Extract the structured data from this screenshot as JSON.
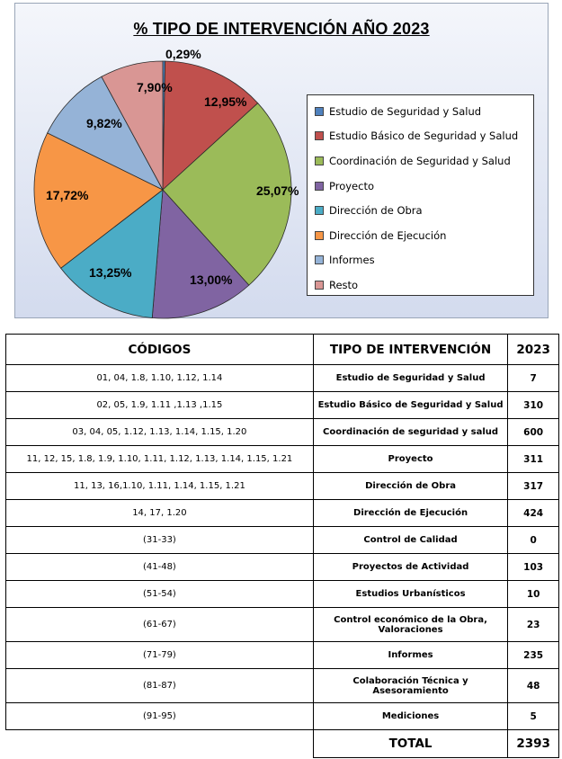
{
  "chart_data": {
    "type": "pie",
    "title": "% TIPO DE INTERVENCIÓN AÑO 2023",
    "slices": [
      {
        "name": "Estudio de Seguridad y Salud",
        "value": 0.29,
        "label": "0,29%",
        "color": "#4f81bd"
      },
      {
        "name": "Estudio Básico de Seguridad y Salud",
        "value": 12.95,
        "label": "12,95%",
        "color": "#c0504d"
      },
      {
        "name": "Coordinación de Seguridad y Salud",
        "value": 25.07,
        "label": "25,07%",
        "color": "#9bbb59"
      },
      {
        "name": "Proyecto",
        "value": 13.0,
        "label": "13,00%",
        "color": "#8064a2"
      },
      {
        "name": "Dirección de Obra",
        "value": 13.25,
        "label": "13,25%",
        "color": "#4bacc6"
      },
      {
        "name": "Dirección de Ejecución",
        "value": 17.72,
        "label": "17,72%",
        "color": "#f79646"
      },
      {
        "name": "Informes",
        "value": 9.82,
        "label": "9,82%",
        "color": "#95b3d7"
      },
      {
        "name": "Resto",
        "value": 7.9,
        "label": "7,90%",
        "color": "#d99694"
      }
    ],
    "legend_position": "right"
  },
  "table": {
    "headers": {
      "codes": "CÓDIGOS",
      "type": "TIPO DE INTERVENCIÓN",
      "year": "2023"
    },
    "rows": [
      {
        "codes": "01, 04, 1.8, 1.10, 1.12, 1.14",
        "type": "Estudio de Seguridad y Salud",
        "value": "7"
      },
      {
        "codes": "02, 05, 1.9, 1.11 ,1.13 ,1.15",
        "type": "Estudio Básico  de Seguridad y Salud",
        "value": "310"
      },
      {
        "codes": "03, 04, 05,  1.12, 1.13, 1.14, 1.15, 1.20",
        "type": "Coordinación de seguridad y salud",
        "value": "600"
      },
      {
        "codes": "11, 12, 15, 1.8, 1.9, 1.10, 1.11, 1.12, 1.13, 1.14, 1.15, 1.21",
        "type": "Proyecto",
        "value": "311"
      },
      {
        "codes": "11, 13, 16,1.10, 1.11, 1.14, 1.15,  1.21",
        "type": "Dirección de Obra",
        "value": "317"
      },
      {
        "codes": "14, 17, 1.20",
        "type": "Dirección de Ejecución",
        "value": "424"
      },
      {
        "codes": "(31-33)",
        "type": "Control de Calidad",
        "value": "0"
      },
      {
        "codes": "(41-48)",
        "type": "Proyectos de Actividad",
        "value": "103"
      },
      {
        "codes": "(51-54)",
        "type": "Estudios Urbanísticos",
        "value": "10"
      },
      {
        "codes": "(61-67)",
        "type": "Control económico de la Obra, Valoraciones",
        "value": "23"
      },
      {
        "codes": "(71-79)",
        "type": "Informes",
        "value": "235"
      },
      {
        "codes": "(81-87)",
        "type": "Colaboración Técnica  y Asesoramiento",
        "value": "48"
      },
      {
        "codes": "(91-95)",
        "type": "Mediciones",
        "value": "5"
      }
    ],
    "total_label": "TOTAL",
    "total_value": "2393"
  }
}
